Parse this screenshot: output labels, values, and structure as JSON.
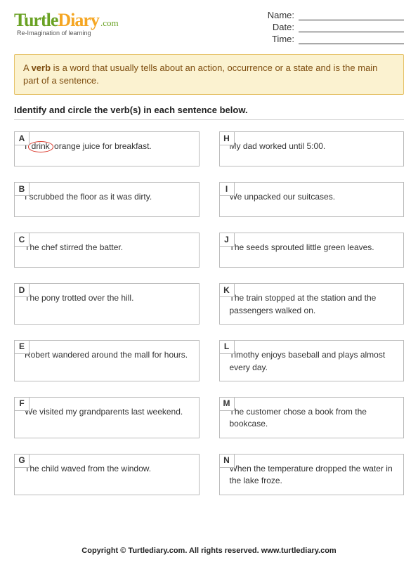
{
  "logo": {
    "w1": "Turtle",
    "w2": "Diary",
    "dot": ".com",
    "tag": "Re-Imagination of learning"
  },
  "fields": {
    "name": "Name:",
    "date": "Date:",
    "time": "Time:"
  },
  "definition": {
    "pre": "A ",
    "bold": "verb",
    "post": " is a word that usually tells about an action, occurrence or a state and is the main part of a sentence."
  },
  "instruction": "Identify and circle the verb(s) in each sentence below.",
  "left": [
    {
      "letter": "A",
      "pre": "I ",
      "circled": "drink",
      "post": " orange juice for breakfast."
    },
    {
      "letter": "B",
      "text": "I scrubbed the floor as it was dirty."
    },
    {
      "letter": "C",
      "text": "The chef stirred the batter."
    },
    {
      "letter": "D",
      "text": "The pony trotted over the hill."
    },
    {
      "letter": "E",
      "text": "Robert wandered around the mall for hours."
    },
    {
      "letter": "F",
      "text": "We visited my grandparents last weekend."
    },
    {
      "letter": "G",
      "text": "The child waved from the window."
    }
  ],
  "right": [
    {
      "letter": "H",
      "text": "My dad worked until 5:00."
    },
    {
      "letter": "I",
      "text": "We unpacked our suitcases."
    },
    {
      "letter": "J",
      "text": "The seeds sprouted little green leaves."
    },
    {
      "letter": "K",
      "text": "The train stopped at the station and the passengers walked on."
    },
    {
      "letter": "L",
      "text": "Timothy enjoys baseball and plays almost every day."
    },
    {
      "letter": "M",
      "text": "The customer chose a book from the bookcase."
    },
    {
      "letter": "N",
      "text": "When the temperature dropped the water in the lake froze."
    }
  ],
  "footer": "Copyright © Turtlediary.com. All rights reserved. www.turtlediary.com",
  "colors": {
    "logo_green": "#6aa224",
    "logo_orange": "#f5a623",
    "defbox_bg": "#fbf2d0",
    "defbox_border": "#e6c36b",
    "defbox_text": "#7e4e10",
    "box_border": "#bbbbbb",
    "circle_red": "#d9372a"
  }
}
